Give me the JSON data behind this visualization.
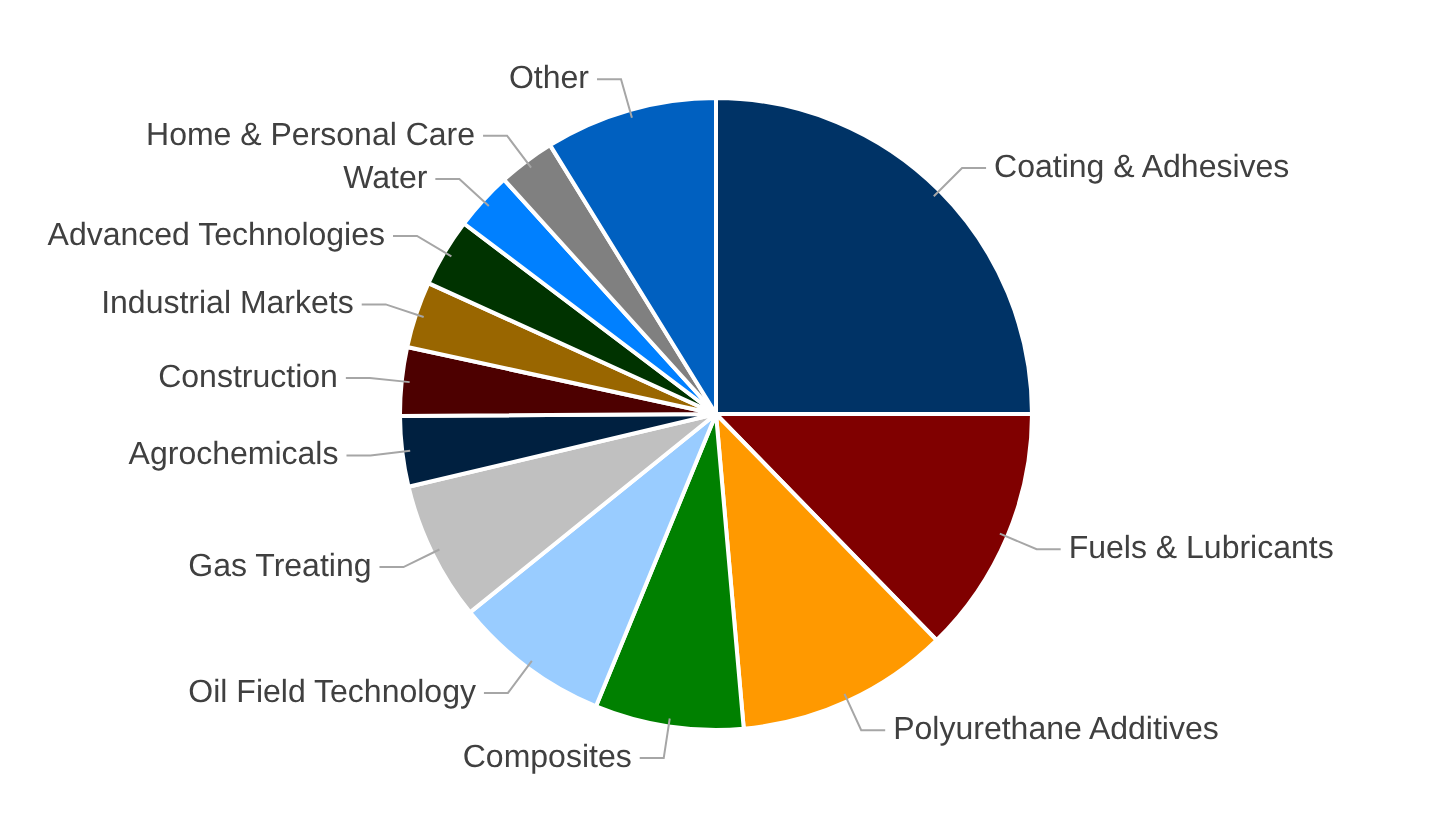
{
  "chart_data": {
    "type": "pie",
    "categories": [
      "Coating & Adhesives",
      "Fuels & Lubricants",
      "Polyurethane Additives",
      "Composites",
      "Oil Field Technology",
      "Gas Treating",
      "Agrochemicals",
      "Construction",
      "Industrial Markets",
      "Advanced Technologies",
      "Water",
      "Home & Personal Care",
      "Other"
    ],
    "values": [
      25,
      12.7,
      10.9,
      7.6,
      8,
      7.1,
      3.6,
      3.5,
      3.4,
      3.5,
      3,
      2.9,
      8.8
    ],
    "colors": [
      "#003366",
      "#800000",
      "#ff9900",
      "#008000",
      "#99ccff",
      "#c0c0c0",
      "#002040",
      "#4d0000",
      "#996600",
      "#003300",
      "#0080ff",
      "#808080",
      "#0060c0"
    ],
    "legend": false
  }
}
